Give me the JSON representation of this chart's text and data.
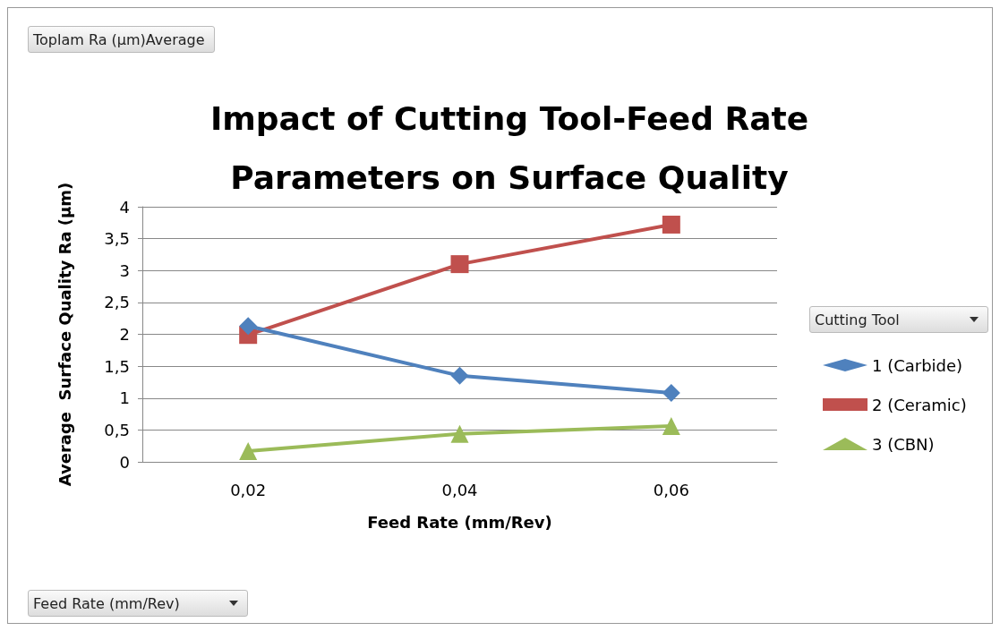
{
  "chart_data": {
    "type": "line",
    "title": "Impact of Cutting Tool-Feed Rate\nParameters on Surface Quality",
    "xlabel": "Feed Rate (mm/Rev)",
    "ylabel": "Average  Surface Quality Ra (µm)",
    "legend_title": "Cutting Tool",
    "annotations": [
      "Toplam Ra (µm)Average",
      "Feed Rate (mm/Rev)"
    ],
    "categories": [
      "0,02",
      "0,04",
      "0,06"
    ],
    "series": [
      {
        "name": "1 (Carbide)",
        "color": "#4f81bd",
        "marker": "diamond",
        "values": [
          2.13,
          1.35,
          1.08
        ]
      },
      {
        "name": "2 (Ceramic)",
        "color": "#c0504d",
        "marker": "square",
        "values": [
          1.99,
          3.1,
          3.72
        ]
      },
      {
        "name": "3 (CBN)",
        "color": "#9bbb59",
        "marker": "triangle",
        "values": [
          0.17,
          0.44,
          0.56
        ]
      }
    ],
    "ylim": [
      0,
      4
    ],
    "yticks": [
      0,
      {
        "value": 0.5,
        "label": "0,5"
      },
      1,
      {
        "value": 1.5,
        "label": "1,5"
      },
      2,
      {
        "value": 2.5,
        "label": "2,5"
      },
      3,
      {
        "value": 3.5,
        "label": "3,5"
      },
      4
    ],
    "grid": "y",
    "legend": "right"
  }
}
